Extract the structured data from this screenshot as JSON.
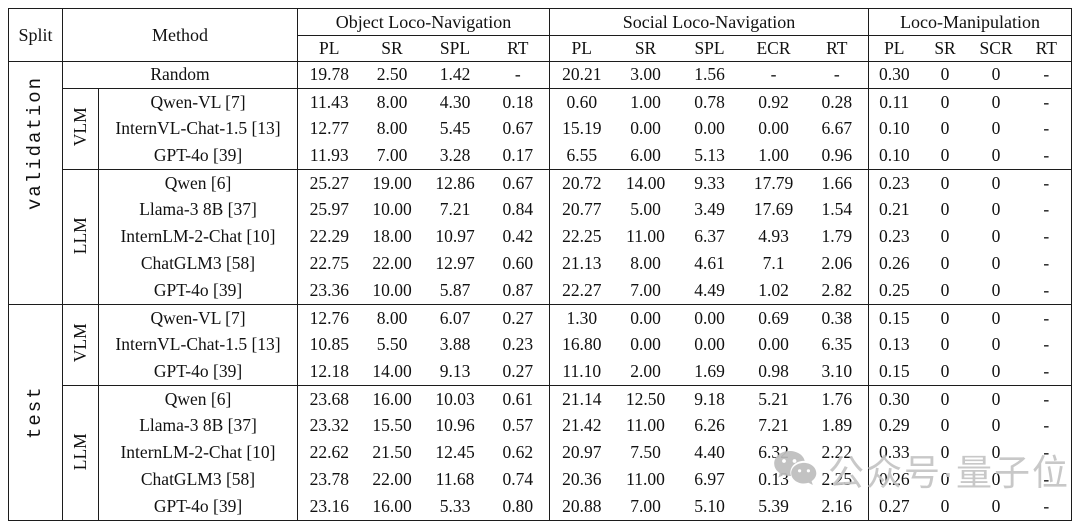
{
  "table": {
    "header": {
      "split": "Split",
      "method": "Method",
      "groups": [
        {
          "label": "Object Loco-Navigation",
          "metrics": [
            "PL",
            "SR",
            "SPL",
            "RT"
          ]
        },
        {
          "label": "Social Loco-Navigation",
          "metrics": [
            "PL",
            "SR",
            "SPL",
            "ECR",
            "RT"
          ]
        },
        {
          "label": "Loco-Manipulation",
          "metrics": [
            "PL",
            "SR",
            "SCR",
            "RT"
          ]
        }
      ]
    },
    "sections": [
      {
        "split_label": "validation",
        "row_groups": [
          {
            "label": null,
            "rows": [
              {
                "method": "Random",
                "values": [
                  "19.78",
                  "2.50",
                  "1.42",
                  "-",
                  "20.21",
                  "3.00",
                  "1.56",
                  "-",
                  "-",
                  "0.30",
                  "0",
                  "0",
                  "-"
                ]
              }
            ]
          },
          {
            "label": "VLM",
            "rows": [
              {
                "method": "Qwen-VL [7]",
                "values": [
                  "11.43",
                  "8.00",
                  "4.30",
                  "0.18",
                  "0.60",
                  "1.00",
                  "0.78",
                  "0.92",
                  "0.28",
                  "0.11",
                  "0",
                  "0",
                  "-"
                ]
              },
              {
                "method": "InternVL-Chat-1.5 [13]",
                "values": [
                  "12.77",
                  "8.00",
                  "5.45",
                  "0.67",
                  "15.19",
                  "0.00",
                  "0.00",
                  "0.00",
                  "6.67",
                  "0.10",
                  "0",
                  "0",
                  "-"
                ]
              },
              {
                "method": "GPT-4o [39]",
                "values": [
                  "11.93",
                  "7.00",
                  "3.28",
                  "0.17",
                  "6.55",
                  "6.00",
                  "5.13",
                  "1.00",
                  "0.96",
                  "0.10",
                  "0",
                  "0",
                  "-"
                ]
              }
            ]
          },
          {
            "label": "LLM",
            "rows": [
              {
                "method": "Qwen [6]",
                "values": [
                  "25.27",
                  "19.00",
                  "12.86",
                  "0.67",
                  "20.72",
                  "14.00",
                  "9.33",
                  "17.79",
                  "1.66",
                  "0.23",
                  "0",
                  "0",
                  "-"
                ]
              },
              {
                "method": "Llama-3 8B [37]",
                "values": [
                  "25.97",
                  "10.00",
                  "7.21",
                  "0.84",
                  "20.77",
                  "5.00",
                  "3.49",
                  "17.69",
                  "1.54",
                  "0.21",
                  "0",
                  "0",
                  "-"
                ]
              },
              {
                "method": "InternLM-2-Chat [10]",
                "values": [
                  "22.29",
                  "18.00",
                  "10.97",
                  "0.42",
                  "22.25",
                  "11.00",
                  "6.37",
                  "4.93",
                  "1.79",
                  "0.23",
                  "0",
                  "0",
                  "-"
                ]
              },
              {
                "method": "ChatGLM3 [58]",
                "values": [
                  "22.75",
                  "22.00",
                  "12.97",
                  "0.60",
                  "21.13",
                  "8.00",
                  "4.61",
                  "7.1",
                  "2.06",
                  "0.26",
                  "0",
                  "0",
                  "-"
                ]
              },
              {
                "method": "GPT-4o [39]",
                "values": [
                  "23.36",
                  "10.00",
                  "5.87",
                  "0.87",
                  "22.27",
                  "7.00",
                  "4.49",
                  "1.02",
                  "2.82",
                  "0.25",
                  "0",
                  "0",
                  "-"
                ]
              }
            ]
          }
        ]
      },
      {
        "split_label": "test",
        "row_groups": [
          {
            "label": "VLM",
            "rows": [
              {
                "method": "Qwen-VL [7]",
                "values": [
                  "12.76",
                  "8.00",
                  "6.07",
                  "0.27",
                  "1.30",
                  "0.00",
                  "0.00",
                  "0.69",
                  "0.38",
                  "0.15",
                  "0",
                  "0",
                  "-"
                ]
              },
              {
                "method": "InternVL-Chat-1.5 [13]",
                "values": [
                  "10.85",
                  "5.50",
                  "3.88",
                  "0.23",
                  "16.80",
                  "0.00",
                  "0.00",
                  "0.00",
                  "6.35",
                  "0.13",
                  "0",
                  "0",
                  "-"
                ]
              },
              {
                "method": "GPT-4o [39]",
                "values": [
                  "12.18",
                  "14.00",
                  "9.13",
                  "0.27",
                  "11.10",
                  "2.00",
                  "1.69",
                  "0.98",
                  "3.10",
                  "0.15",
                  "0",
                  "0",
                  "-"
                ]
              }
            ]
          },
          {
            "label": "LLM",
            "rows": [
              {
                "method": "Qwen [6]",
                "values": [
                  "23.68",
                  "16.00",
                  "10.03",
                  "0.61",
                  "21.14",
                  "12.50",
                  "9.18",
                  "5.21",
                  "1.76",
                  "0.30",
                  "0",
                  "0",
                  "-"
                ]
              },
              {
                "method": "Llama-3 8B [37]",
                "values": [
                  "23.32",
                  "15.50",
                  "10.96",
                  "0.57",
                  "21.42",
                  "11.00",
                  "6.26",
                  "7.21",
                  "1.89",
                  "0.29",
                  "0",
                  "0",
                  "-"
                ]
              },
              {
                "method": "InternLM-2-Chat [10]",
                "values": [
                  "22.62",
                  "21.50",
                  "12.45",
                  "0.62",
                  "20.97",
                  "7.50",
                  "4.40",
                  "6.32",
                  "2.22",
                  "0.33",
                  "0",
                  "0",
                  "-"
                ]
              },
              {
                "method": "ChatGLM3 [58]",
                "values": [
                  "23.78",
                  "22.00",
                  "11.68",
                  "0.74",
                  "20.36",
                  "11.00",
                  "6.97",
                  "0.13",
                  "2.25",
                  "0.26",
                  "0",
                  "0",
                  "-"
                ]
              },
              {
                "method": "GPT-4o [39]",
                "values": [
                  "23.16",
                  "16.00",
                  "5.33",
                  "0.80",
                  "20.88",
                  "7.00",
                  "5.10",
                  "5.39",
                  "2.16",
                  "0.27",
                  "0",
                  "0",
                  "-"
                ]
              }
            ]
          }
        ]
      }
    ]
  },
  "watermark": {
    "text": "公众号·量子位",
    "icon": "wechat-icon",
    "color": "#c4c4c4"
  }
}
